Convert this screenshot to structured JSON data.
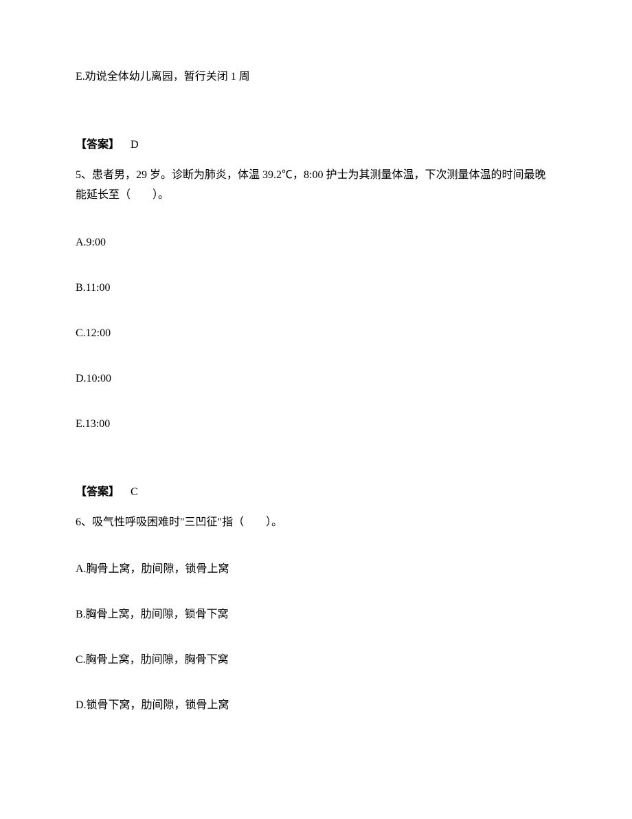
{
  "q4": {
    "optionE": "E.劝说全体幼儿离园，暂行关闭 1 周",
    "answerLabel": "【答案】",
    "answerValue": "D"
  },
  "q5": {
    "text": "5、患者男，29 岁。诊断为肺炎，体温 39.2℃，8:00 护士为其测量体温，下次测量体温的时间最晚能延长至（　　）。",
    "optionA": "A.9:00",
    "optionB": "B.11:00",
    "optionC": "C.12:00",
    "optionD": "D.10:00",
    "optionE": "E.13:00",
    "answerLabel": "【答案】",
    "answerValue": "C"
  },
  "q6": {
    "text": "6、吸气性呼吸困难时\"三凹征\"指（　　）。",
    "optionA": "A.胸骨上窝，肋间隙，锁骨上窝",
    "optionB": "B.胸骨上窝，肋间隙，锁骨下窝",
    "optionC": "C.胸骨上窝，肋间隙，胸骨下窝",
    "optionD": "D.锁骨下窝，肋间隙，锁骨上窝"
  }
}
